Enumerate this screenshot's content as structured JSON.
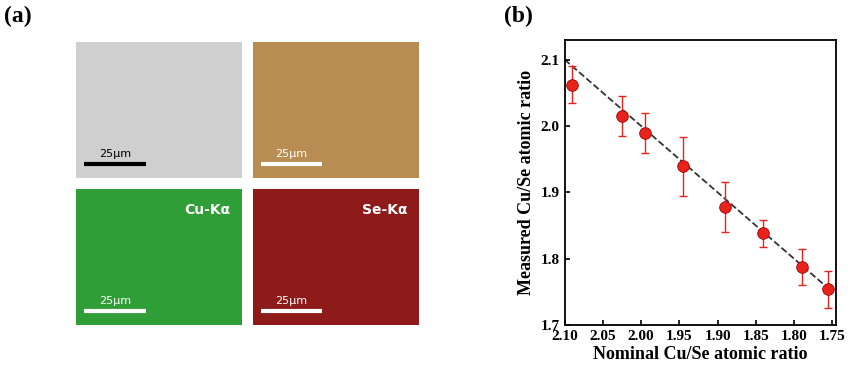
{
  "panel_labels": [
    "(a)",
    "(b)"
  ],
  "images": [
    {
      "scale_bar": "25μm"
    },
    {
      "scale_bar": "25μm"
    },
    {
      "element": "Cu-Kα",
      "scale_bar": "25μm"
    },
    {
      "element": "Se-Kα",
      "scale_bar": "25μm"
    }
  ],
  "chart_data": {
    "type": "scatter",
    "x_label": "Nominal Cu/Se atomic ratio",
    "y_label": "Measured Cu/Se atomic ratio",
    "x": [
      2.09,
      2.025,
      1.995,
      1.945,
      1.89,
      1.84,
      1.79,
      1.755
    ],
    "values": [
      2.062,
      2.015,
      1.99,
      1.939,
      1.878,
      1.838,
      1.787,
      1.754
    ],
    "errors": [
      0.028,
      0.03,
      0.03,
      0.045,
      0.038,
      0.02,
      0.027,
      0.028
    ],
    "color": "#e8231e",
    "marker": "o",
    "reference_line": {
      "x": [
        2.1,
        1.75
      ],
      "values": [
        2.1,
        1.75
      ],
      "line_style": "dashed",
      "color": "#333333"
    },
    "xlim": [
      2.1,
      1.745
    ],
    "ylim": [
      1.7,
      2.13
    ],
    "xticks": [
      {
        "value": 2.1,
        "label": "2.10"
      },
      2.05,
      {
        "value": 2.0,
        "label": "2.00"
      },
      1.95,
      {
        "value": 1.9,
        "label": "1.90"
      },
      1.85,
      {
        "value": 1.8,
        "label": "1.80"
      },
      1.75
    ],
    "yticks": [
      1.7,
      1.8,
      1.9,
      2.0,
      2.1
    ],
    "grid": false
  }
}
